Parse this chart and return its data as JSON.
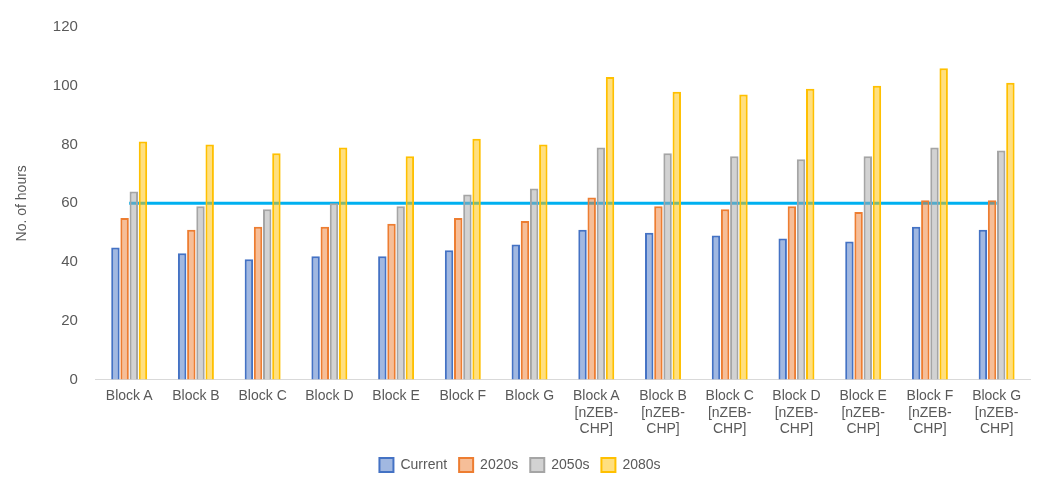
{
  "chart_data": {
    "type": "bar",
    "ylabel": "No. of hours",
    "categories": [
      "Block A",
      "Block B",
      "Block C",
      "Block D",
      "Block E",
      "Block F",
      "Block G",
      "Block A [nZEB-CHP]",
      "Block B [nZEB-CHP]",
      "Block C [nZEB-CHP]",
      "Block D [nZEB-CHP]",
      "Block E [nZEB-CHP]",
      "Block F [nZEB-CHP]",
      "Block G [nZEB-CHP]"
    ],
    "series": [
      {
        "name": "Current",
        "color": "#4472c4",
        "values": [
          45,
          43,
          41,
          42,
          42,
          44,
          46,
          51,
          50,
          49,
          48,
          47,
          52,
          51
        ]
      },
      {
        "name": "2020s",
        "color": "#ed7d31",
        "values": [
          55,
          51,
          52,
          52,
          53,
          55,
          54,
          62,
          59,
          58,
          59,
          57,
          61,
          61
        ]
      },
      {
        "name": "2050s",
        "color": "#a5a5a5",
        "values": [
          64,
          59,
          58,
          60,
          59,
          63,
          65,
          79,
          77,
          76,
          75,
          76,
          79,
          78
        ]
      },
      {
        "name": "2080s",
        "color": "#ffc000",
        "values": [
          81,
          80,
          77,
          79,
          76,
          82,
          80,
          103,
          98,
          97,
          99,
          100,
          106,
          101
        ]
      }
    ],
    "ylim": [
      0,
      120
    ],
    "yticks": [
      0,
      20,
      40,
      60,
      80,
      100,
      120
    ],
    "grid": false,
    "legend": "bottom",
    "ref_lines": [
      {
        "axis": "y",
        "value": 60,
        "color": "#00b0f0"
      }
    ]
  }
}
